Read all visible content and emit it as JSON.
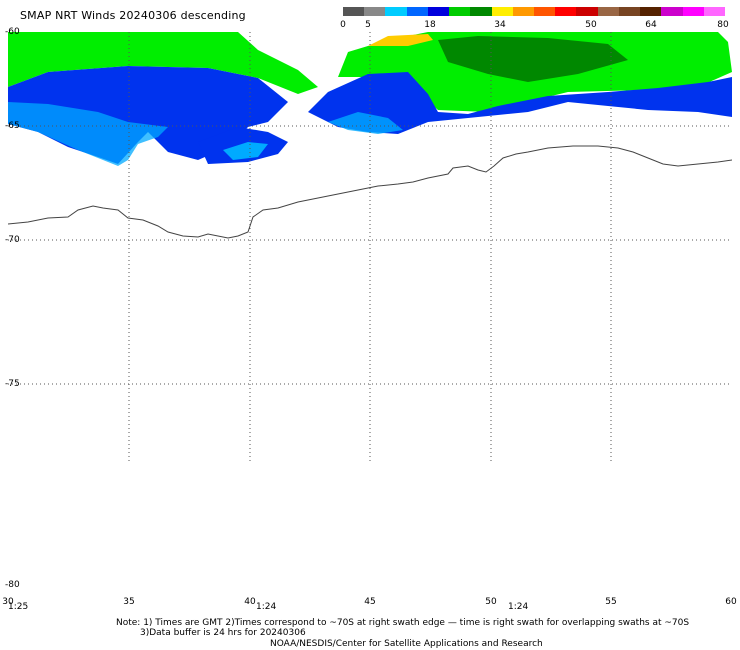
{
  "title": "SMAP NRT Winds  20240306 descending",
  "colorbar": {
    "segments": [
      "#555555",
      "#888888",
      "#00ccff",
      "#0066ff",
      "#0000dd",
      "#00cc00",
      "#008800",
      "#ffee00",
      "#ff9900",
      "#ff5500",
      "#ff0000",
      "#cc0000",
      "#996644",
      "#774422",
      "#552200",
      "#cc00cc",
      "#ff00ff",
      "#ff66ff"
    ],
    "labels": [
      "0",
      "5",
      "18",
      "34",
      "50",
      "64",
      "80"
    ]
  },
  "lat_labels": [
    "-60",
    "-65",
    "-70",
    "-75",
    "-80"
  ],
  "lon_labels": [
    "30",
    "35",
    "40",
    "45",
    "50",
    "55",
    "60"
  ],
  "time_labels": [
    "1:25",
    "1:24",
    "1:24"
  ],
  "notes": {
    "line1": "Note: 1) Times are GMT 2)Times correspond to ~70S at right swath edge — time is right swath for overlapping swaths at ~70S",
    "line2": "3)Data buffer is 24 hrs for 20240306",
    "line3": "NOAA/NESDIS/Center for Satellite Applications and Research"
  },
  "colors": {
    "green": "#00ee00",
    "dark_green": "#008800",
    "blue": "#0033ee",
    "light_blue": "#00aaff",
    "yellow": "#ffcc00",
    "coast": "#444444"
  }
}
